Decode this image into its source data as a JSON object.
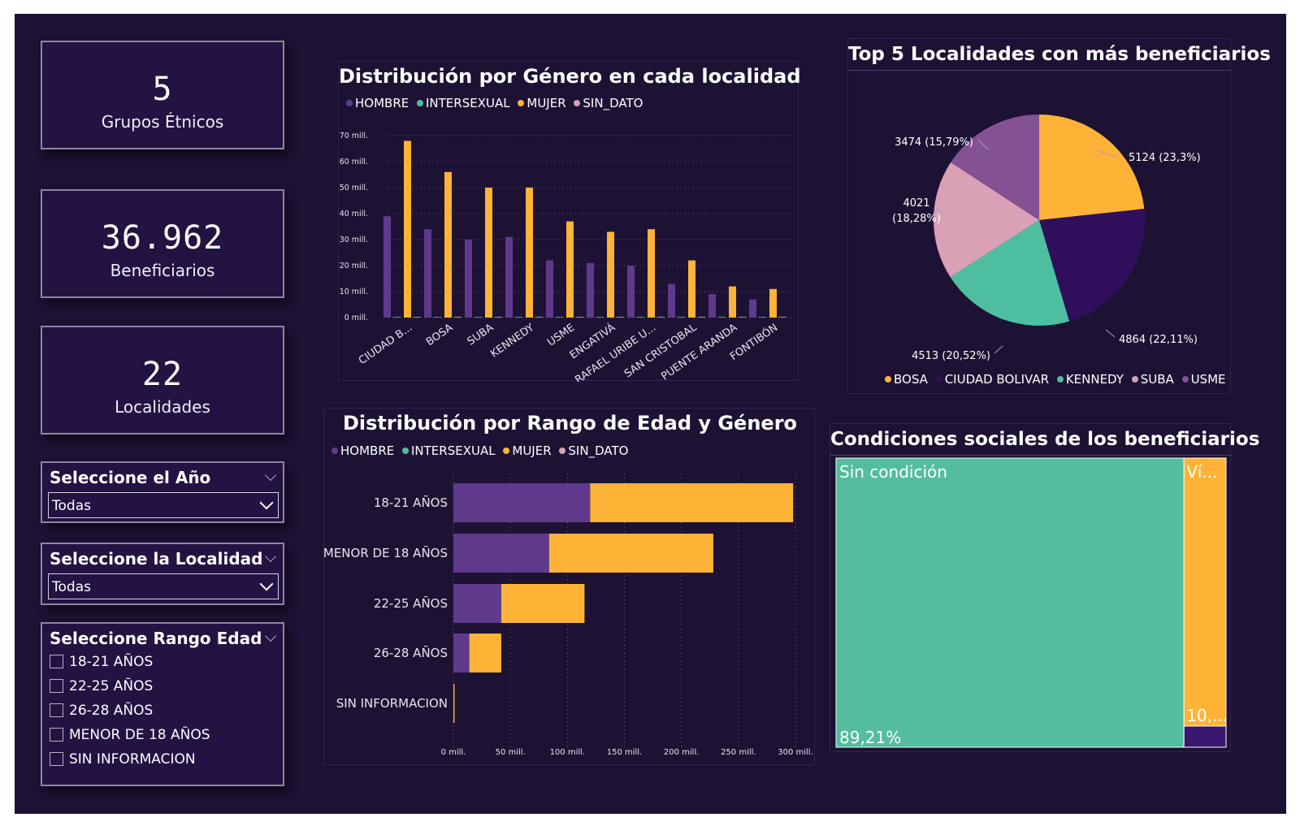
{
  "kpis": [
    {
      "value": "5",
      "label": "Grupos Étnicos"
    },
    {
      "value": "36.962",
      "label": "Beneficiarios"
    },
    {
      "value": "22",
      "label": "Localidades"
    }
  ],
  "slicers": {
    "year": {
      "title": "Seleccione el Año",
      "value": "Todas"
    },
    "locality": {
      "title": "Seleccione la Localidad",
      "value": "Todas"
    },
    "age": {
      "title": "Seleccione Rango Edad",
      "options": [
        "18-21 AÑOS",
        "22-25 AÑOS",
        "26-28 AÑOS",
        "MENOR DE 18 AÑOS",
        "SIN INFORMACION"
      ]
    }
  },
  "colors": {
    "hombre": "#5f3a8c",
    "intersexual": "#4dbfa0",
    "mujer": "#ffb336",
    "sin_dato": "#d9a0b6",
    "pie_usme": "#845192",
    "pie_ciudad": "#2f0f5c",
    "pie_suba": "#d9a0b6"
  },
  "gender_legend": [
    "HOMBRE",
    "INTERSEXUAL",
    "MUJER",
    "SIN_DATO"
  ],
  "chart_data": [
    {
      "type": "bar",
      "title": "Distribución por Género en cada localidad",
      "categories": [
        "CIUDAD B...",
        "BOSA",
        "SUBA",
        "KENNEDY",
        "USME",
        "ENGATIVÁ",
        "RAFAEL URIBE U...",
        "SAN CRISTOBAL",
        "PUENTE ARANDA",
        "FONTIBÓN"
      ],
      "series": [
        {
          "name": "HOMBRE",
          "values": [
            39,
            34,
            30,
            31,
            22,
            21,
            20,
            13,
            9,
            7
          ]
        },
        {
          "name": "INTERSEXUAL",
          "values": [
            0,
            0,
            0,
            0,
            0,
            0,
            0,
            0,
            0,
            0
          ]
        },
        {
          "name": "MUJER",
          "values": [
            68,
            56,
            50,
            50,
            37,
            33,
            34,
            22,
            12,
            11
          ]
        },
        {
          "name": "SIN_DATO",
          "values": [
            0,
            0,
            0,
            0,
            0,
            0,
            0,
            0,
            0,
            0
          ]
        }
      ],
      "yticks": [
        "0 mill.",
        "10 mill.",
        "20 mill.",
        "30 mill.",
        "40 mill.",
        "50 mill.",
        "60 mill.",
        "70 mill."
      ],
      "ylim": [
        0,
        70
      ],
      "grid": true,
      "legend": "top-left"
    },
    {
      "type": "pie",
      "title": "Top 5 Localidades con más beneficiarios",
      "slices": [
        {
          "name": "BOSA",
          "value": 5124,
          "label": "5124 (23,3%)"
        },
        {
          "name": "CIUDAD BOLIVAR",
          "value": 4864,
          "label": "4864 (22,11%)"
        },
        {
          "name": "KENNEDY",
          "value": 4513,
          "label": "4513 (20,52%)"
        },
        {
          "name": "SUBA",
          "value": 4021,
          "label_line1": "4021",
          "label_line2": "(18,28%)"
        },
        {
          "name": "USME",
          "value": 3474,
          "label": "3474 (15,79%)"
        }
      ],
      "legend": "bottom"
    },
    {
      "type": "bar",
      "orientation": "horizontal",
      "stacked": true,
      "title": "Distribución por Rango de Edad y Género",
      "categories": [
        "18-21 AÑOS",
        "MENOR DE 18 AÑOS",
        "22-25 AÑOS",
        "26-28 AÑOS",
        "SIN INFORMACION"
      ],
      "series": [
        {
          "name": "HOMBRE",
          "values": [
            120,
            84,
            42,
            14,
            0
          ]
        },
        {
          "name": "INTERSEXUAL",
          "values": [
            0,
            0,
            0,
            0,
            0
          ]
        },
        {
          "name": "MUJER",
          "values": [
            178,
            144,
            73,
            28,
            1
          ]
        },
        {
          "name": "SIN_DATO",
          "values": [
            0,
            0,
            0,
            0,
            0
          ]
        }
      ],
      "xticks": [
        "0 mill.",
        "50 mill.",
        "100 mill.",
        "150 mill.",
        "200 mill.",
        "250 mill.",
        "300 mill."
      ],
      "xlim": [
        0,
        300
      ],
      "grid": true,
      "legend": "top-left"
    },
    {
      "type": "treemap",
      "title": "Condiciones sociales de los beneficiarios",
      "items": [
        {
          "name": "Sin condición",
          "share": 89.21,
          "value_label": "89,21%"
        },
        {
          "name": "Ví...",
          "share": 10.0,
          "value_label": "10,..."
        },
        {
          "name": "",
          "share": 0.79,
          "value_label": ""
        }
      ]
    }
  ]
}
